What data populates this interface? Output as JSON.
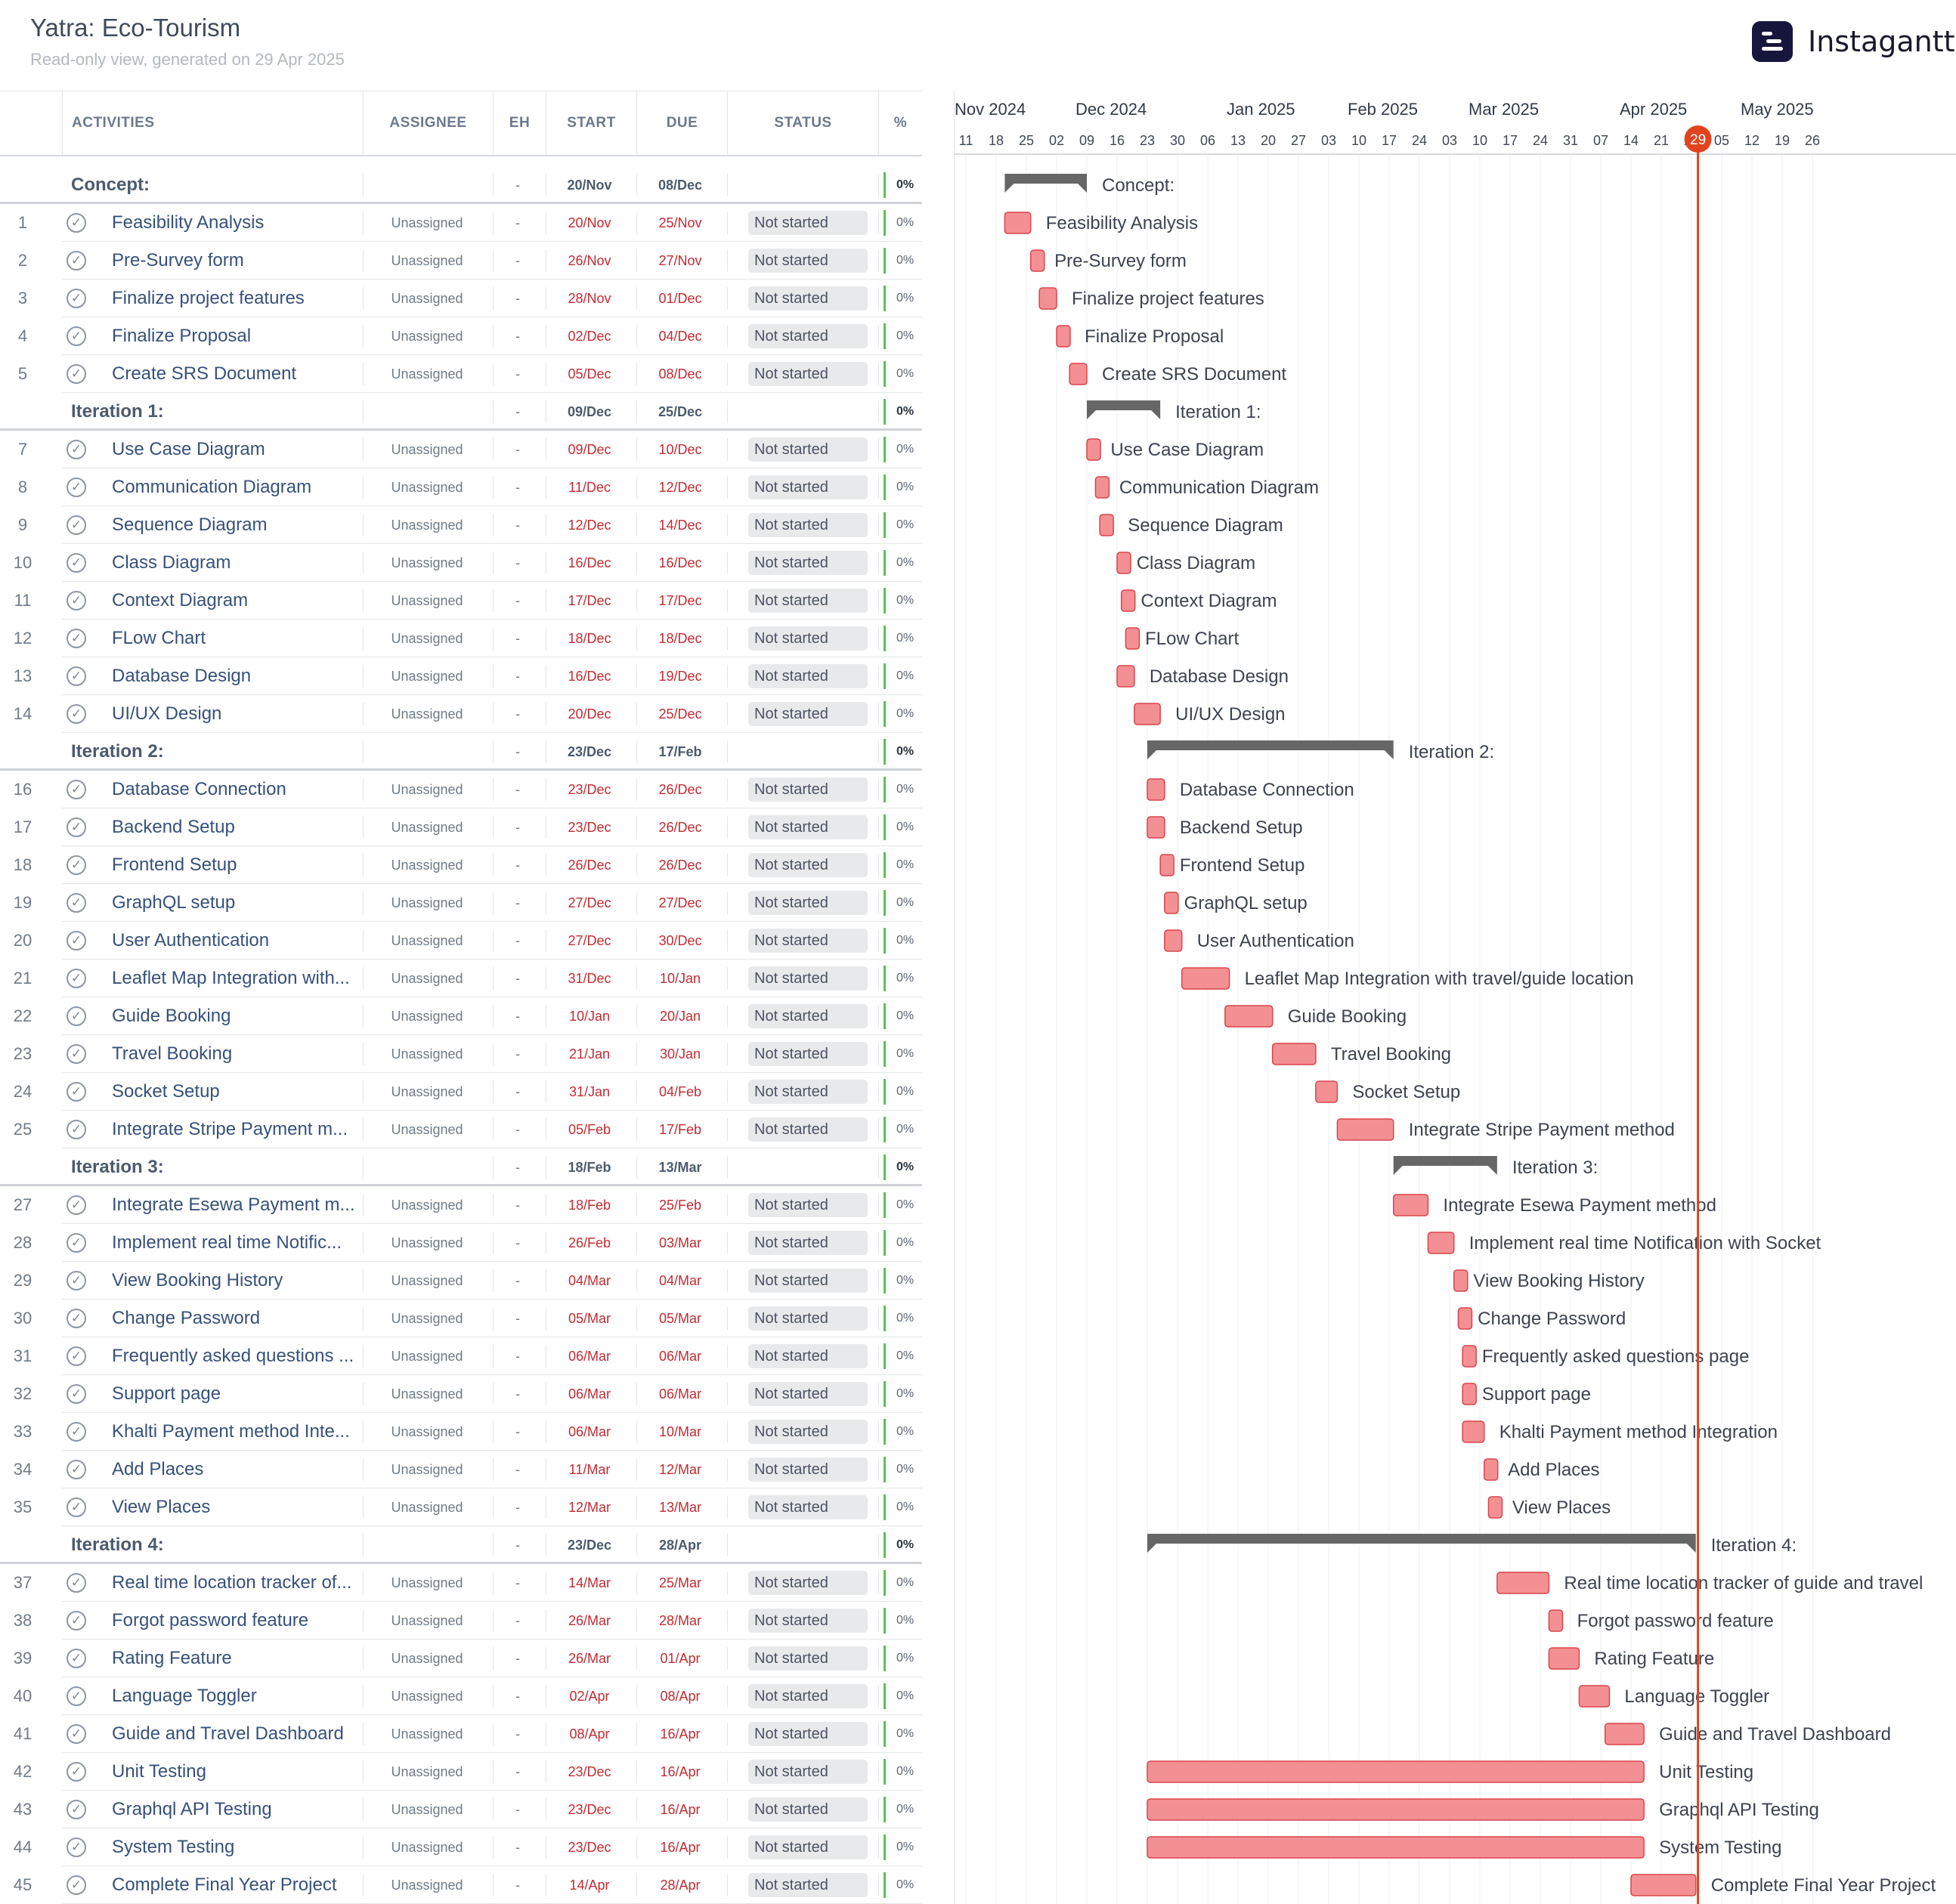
{
  "app": {
    "title": "Yatra: Eco-Tourism",
    "subtitle": "Read-only view, generated on 29 Apr 2025",
    "logo_text": "Instagantt"
  },
  "colors": {
    "task_bar": "#f39093",
    "task_bar_border": "#d9454c",
    "group_bar": "#666666",
    "today_line": "#e2431f",
    "overdue_date": "#c42b33"
  },
  "table": {
    "headers": {
      "activities": "ACTIVITIES",
      "assignee": "ASSIGNEE",
      "eh": "EH",
      "start": "START",
      "due": "DUE",
      "status": "STATUS",
      "percent": "%"
    },
    "rows": [
      {
        "type": "group",
        "name": "Concept:",
        "eh": "-",
        "start": "20/Nov",
        "due": "08/Dec",
        "pct": "0%"
      },
      {
        "type": "task",
        "num": "1",
        "name": "Feasibility Analysis",
        "assignee": "Unassigned",
        "eh": "-",
        "start": "20/Nov",
        "due": "25/Nov",
        "status": "Not started",
        "pct": "0%"
      },
      {
        "type": "task",
        "num": "2",
        "name": "Pre-Survey form",
        "assignee": "Unassigned",
        "eh": "-",
        "start": "26/Nov",
        "due": "27/Nov",
        "status": "Not started",
        "pct": "0%"
      },
      {
        "type": "task",
        "num": "3",
        "name": "Finalize project features",
        "assignee": "Unassigned",
        "eh": "-",
        "start": "28/Nov",
        "due": "01/Dec",
        "status": "Not started",
        "pct": "0%"
      },
      {
        "type": "task",
        "num": "4",
        "name": "Finalize Proposal",
        "assignee": "Unassigned",
        "eh": "-",
        "start": "02/Dec",
        "due": "04/Dec",
        "status": "Not started",
        "pct": "0%"
      },
      {
        "type": "task",
        "num": "5",
        "name": "Create SRS Document",
        "assignee": "Unassigned",
        "eh": "-",
        "start": "05/Dec",
        "due": "08/Dec",
        "status": "Not started",
        "pct": "0%"
      },
      {
        "type": "group",
        "name": "Iteration 1:",
        "eh": "-",
        "start": "09/Dec",
        "due": "25/Dec",
        "pct": "0%"
      },
      {
        "type": "task",
        "num": "7",
        "name": "Use Case Diagram",
        "assignee": "Unassigned",
        "eh": "-",
        "start": "09/Dec",
        "due": "10/Dec",
        "status": "Not started",
        "pct": "0%"
      },
      {
        "type": "task",
        "num": "8",
        "name": "Communication Diagram",
        "assignee": "Unassigned",
        "eh": "-",
        "start": "11/Dec",
        "due": "12/Dec",
        "status": "Not started",
        "pct": "0%"
      },
      {
        "type": "task",
        "num": "9",
        "name": "Sequence Diagram",
        "assignee": "Unassigned",
        "eh": "-",
        "start": "12/Dec",
        "due": "14/Dec",
        "status": "Not started",
        "pct": "0%"
      },
      {
        "type": "task",
        "num": "10",
        "name": "Class Diagram",
        "assignee": "Unassigned",
        "eh": "-",
        "start": "16/Dec",
        "due": "16/Dec",
        "status": "Not started",
        "pct": "0%"
      },
      {
        "type": "task",
        "num": "11",
        "name": "Context Diagram",
        "assignee": "Unassigned",
        "eh": "-",
        "start": "17/Dec",
        "due": "17/Dec",
        "status": "Not started",
        "pct": "0%"
      },
      {
        "type": "task",
        "num": "12",
        "name": "FLow Chart",
        "assignee": "Unassigned",
        "eh": "-",
        "start": "18/Dec",
        "due": "18/Dec",
        "status": "Not started",
        "pct": "0%"
      },
      {
        "type": "task",
        "num": "13",
        "name": "Database Design",
        "assignee": "Unassigned",
        "eh": "-",
        "start": "16/Dec",
        "due": "19/Dec",
        "status": "Not started",
        "pct": "0%"
      },
      {
        "type": "task",
        "num": "14",
        "name": "UI/UX Design",
        "assignee": "Unassigned",
        "eh": "-",
        "start": "20/Dec",
        "due": "25/Dec",
        "status": "Not started",
        "pct": "0%"
      },
      {
        "type": "group",
        "name": "Iteration 2:",
        "eh": "-",
        "start": "23/Dec",
        "due": "17/Feb",
        "pct": "0%"
      },
      {
        "type": "task",
        "num": "16",
        "name": "Database Connection",
        "assignee": "Unassigned",
        "eh": "-",
        "start": "23/Dec",
        "due": "26/Dec",
        "status": "Not started",
        "pct": "0%"
      },
      {
        "type": "task",
        "num": "17",
        "name": "Backend Setup",
        "assignee": "Unassigned",
        "eh": "-",
        "start": "23/Dec",
        "due": "26/Dec",
        "status": "Not started",
        "pct": "0%"
      },
      {
        "type": "task",
        "num": "18",
        "name": "Frontend Setup",
        "assignee": "Unassigned",
        "eh": "-",
        "start": "26/Dec",
        "due": "26/Dec",
        "status": "Not started",
        "pct": "0%"
      },
      {
        "type": "task",
        "num": "19",
        "name": "GraphQL setup",
        "assignee": "Unassigned",
        "eh": "-",
        "start": "27/Dec",
        "due": "27/Dec",
        "status": "Not started",
        "pct": "0%"
      },
      {
        "type": "task",
        "num": "20",
        "name": "User Authentication",
        "assignee": "Unassigned",
        "eh": "-",
        "start": "27/Dec",
        "due": "30/Dec",
        "status": "Not started",
        "pct": "0%"
      },
      {
        "type": "task",
        "num": "21",
        "name": "Leaflet Map Integration with...",
        "full": "Leaflet Map Integration with travel/guide location",
        "assignee": "Unassigned",
        "eh": "-",
        "start": "31/Dec",
        "due": "10/Jan",
        "status": "Not started",
        "pct": "0%"
      },
      {
        "type": "task",
        "num": "22",
        "name": "Guide Booking",
        "assignee": "Unassigned",
        "eh": "-",
        "start": "10/Jan",
        "due": "20/Jan",
        "status": "Not started",
        "pct": "0%"
      },
      {
        "type": "task",
        "num": "23",
        "name": "Travel Booking",
        "assignee": "Unassigned",
        "eh": "-",
        "start": "21/Jan",
        "due": "30/Jan",
        "status": "Not started",
        "pct": "0%"
      },
      {
        "type": "task",
        "num": "24",
        "name": "Socket Setup",
        "assignee": "Unassigned",
        "eh": "-",
        "start": "31/Jan",
        "due": "04/Feb",
        "status": "Not started",
        "pct": "0%"
      },
      {
        "type": "task",
        "num": "25",
        "name": "Integrate Stripe Payment m...",
        "full": "Integrate Stripe Payment method",
        "assignee": "Unassigned",
        "eh": "-",
        "start": "05/Feb",
        "due": "17/Feb",
        "status": "Not started",
        "pct": "0%"
      },
      {
        "type": "group",
        "name": "Iteration 3:",
        "eh": "-",
        "start": "18/Feb",
        "due": "13/Mar",
        "pct": "0%"
      },
      {
        "type": "task",
        "num": "27",
        "name": "Integrate Esewa Payment m...",
        "full": "Integrate Esewa Payment method",
        "assignee": "Unassigned",
        "eh": "-",
        "start": "18/Feb",
        "due": "25/Feb",
        "status": "Not started",
        "pct": "0%"
      },
      {
        "type": "task",
        "num": "28",
        "name": "Implement real time Notific...",
        "full": "Implement real time Notification with Socket",
        "assignee": "Unassigned",
        "eh": "-",
        "start": "26/Feb",
        "due": "03/Mar",
        "status": "Not started",
        "pct": "0%"
      },
      {
        "type": "task",
        "num": "29",
        "name": "View Booking History",
        "assignee": "Unassigned",
        "eh": "-",
        "start": "04/Mar",
        "due": "04/Mar",
        "status": "Not started",
        "pct": "0%"
      },
      {
        "type": "task",
        "num": "30",
        "name": "Change Password",
        "assignee": "Unassigned",
        "eh": "-",
        "start": "05/Mar",
        "due": "05/Mar",
        "status": "Not started",
        "pct": "0%"
      },
      {
        "type": "task",
        "num": "31",
        "name": "Frequently asked questions ...",
        "full": "Frequently asked questions page",
        "assignee": "Unassigned",
        "eh": "-",
        "start": "06/Mar",
        "due": "06/Mar",
        "status": "Not started",
        "pct": "0%"
      },
      {
        "type": "task",
        "num": "32",
        "name": "Support page",
        "assignee": "Unassigned",
        "eh": "-",
        "start": "06/Mar",
        "due": "06/Mar",
        "status": "Not started",
        "pct": "0%"
      },
      {
        "type": "task",
        "num": "33",
        "name": "Khalti Payment method Inte...",
        "full": "Khalti Payment method Integration",
        "assignee": "Unassigned",
        "eh": "-",
        "start": "06/Mar",
        "due": "10/Mar",
        "status": "Not started",
        "pct": "0%"
      },
      {
        "type": "task",
        "num": "34",
        "name": "Add Places",
        "assignee": "Unassigned",
        "eh": "-",
        "start": "11/Mar",
        "due": "12/Mar",
        "status": "Not started",
        "pct": "0%"
      },
      {
        "type": "task",
        "num": "35",
        "name": "View Places",
        "assignee": "Unassigned",
        "eh": "-",
        "start": "12/Mar",
        "due": "13/Mar",
        "status": "Not started",
        "pct": "0%"
      },
      {
        "type": "group",
        "name": "Iteration 4:",
        "eh": "-",
        "start": "23/Dec",
        "due": "28/Apr",
        "pct": "0%"
      },
      {
        "type": "task",
        "num": "37",
        "name": "Real time location tracker of...",
        "full": "Real time location tracker of guide and travel",
        "assignee": "Unassigned",
        "eh": "-",
        "start": "14/Mar",
        "due": "25/Mar",
        "status": "Not started",
        "pct": "0%"
      },
      {
        "type": "task",
        "num": "38",
        "name": "Forgot password feature",
        "assignee": "Unassigned",
        "eh": "-",
        "start": "26/Mar",
        "due": "28/Mar",
        "status": "Not started",
        "pct": "0%"
      },
      {
        "type": "task",
        "num": "39",
        "name": "Rating Feature",
        "assignee": "Unassigned",
        "eh": "-",
        "start": "26/Mar",
        "due": "01/Apr",
        "status": "Not started",
        "pct": "0%"
      },
      {
        "type": "task",
        "num": "40",
        "name": "Language Toggler",
        "assignee": "Unassigned",
        "eh": "-",
        "start": "02/Apr",
        "due": "08/Apr",
        "status": "Not started",
        "pct": "0%"
      },
      {
        "type": "task",
        "num": "41",
        "name": "Guide and Travel Dashboard",
        "assignee": "Unassigned",
        "eh": "-",
        "start": "08/Apr",
        "due": "16/Apr",
        "status": "Not started",
        "pct": "0%"
      },
      {
        "type": "task",
        "num": "42",
        "name": "Unit Testing",
        "assignee": "Unassigned",
        "eh": "-",
        "start": "23/Dec",
        "due": "16/Apr",
        "status": "Not started",
        "pct": "0%"
      },
      {
        "type": "task",
        "num": "43",
        "name": "Graphql API Testing",
        "assignee": "Unassigned",
        "eh": "-",
        "start": "23/Dec",
        "due": "16/Apr",
        "status": "Not started",
        "pct": "0%"
      },
      {
        "type": "task",
        "num": "44",
        "name": "System Testing",
        "assignee": "Unassigned",
        "eh": "-",
        "start": "23/Dec",
        "due": "16/Apr",
        "status": "Not started",
        "pct": "0%"
      },
      {
        "type": "task",
        "num": "45",
        "name": "Complete Final Year Project",
        "assignee": "Unassigned",
        "eh": "-",
        "start": "14/Apr",
        "due": "28/Apr",
        "status": "Not started",
        "pct": "0%"
      }
    ]
  },
  "timeline": {
    "months": [
      {
        "label": "Nov 2024",
        "week": 0
      },
      {
        "label": "Dec 2024",
        "week": 4
      },
      {
        "label": "Jan 2025",
        "week": 9
      },
      {
        "label": "Feb 2025",
        "week": 13
      },
      {
        "label": "Mar 2025",
        "week": 17
      },
      {
        "label": "Apr 2025",
        "week": 22
      },
      {
        "label": "May 2025",
        "week": 26
      }
    ],
    "weeks": [
      "11",
      "18",
      "25",
      "02",
      "09",
      "16",
      "23",
      "30",
      "06",
      "13",
      "20",
      "27",
      "03",
      "10",
      "17",
      "24",
      "03",
      "10",
      "17",
      "24",
      "31",
      "07",
      "14",
      "21",
      "28",
      "05",
      "12",
      "19",
      "26"
    ],
    "week_starts": [
      "2024-11-11",
      "2024-11-18",
      "2024-11-25",
      "2024-12-02",
      "2024-12-09",
      "2024-12-16",
      "2024-12-23",
      "2024-12-30",
      "2025-01-06",
      "2025-01-13",
      "2025-01-20",
      "2025-01-27",
      "2025-02-03",
      "2025-02-10",
      "2025-02-17",
      "2025-02-24",
      "2025-03-03",
      "2025-03-10",
      "2025-03-17",
      "2025-03-24",
      "2025-03-31",
      "2025-04-07",
      "2025-04-14",
      "2025-04-21",
      "2025-04-28",
      "2025-05-05",
      "2025-05-12",
      "2025-05-19",
      "2025-05-26"
    ],
    "today_label": "29",
    "today": "2025-04-29",
    "year_of_month": {
      "Nov": 2024,
      "Dec": 2024,
      "Jan": 2025,
      "Feb": 2025,
      "Mar": 2025,
      "Apr": 2025,
      "May": 2025
    }
  }
}
